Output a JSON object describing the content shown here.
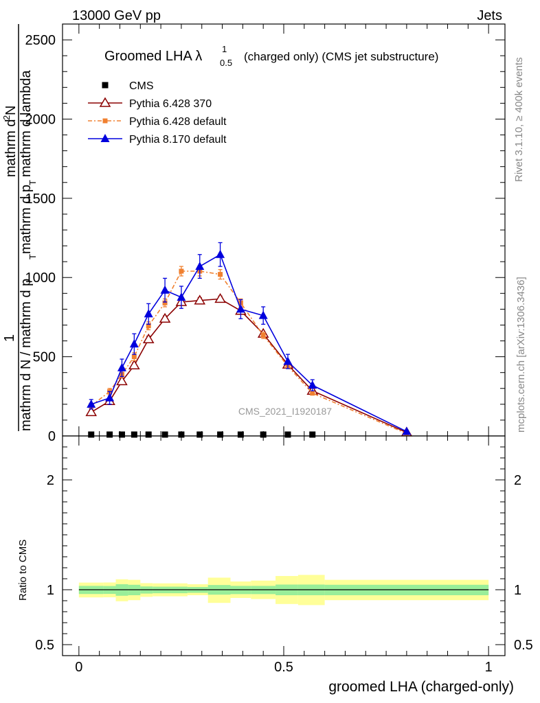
{
  "header": {
    "left": "13000 GeV pp",
    "right": "Jets"
  },
  "title": {
    "prefix": "Groomed LHA ",
    "lambda": "λ",
    "sup": "1",
    "sub": "0.5",
    "suffix": "(charged only) (CMS jet substructure)"
  },
  "watermark": "CMS_2021_I1920187",
  "side_labels": {
    "rivet": "Rivet 3.1.10, ≥ 400k events",
    "mcplots": "mcplots.cern.ch [arXiv:1306.3436]"
  },
  "ylabel_main": {
    "one": "1",
    "num": "mathrm d N",
    "num_top": "mathrm d",
    "num_sup": "2",
    "num_right": "N",
    "den": "mathrm d N / mathrm d p",
    "den_sub": "T",
    "den_top": "mathrm d p",
    "den_top_sub": "T",
    "den_top2": "mathrm d lambda"
  },
  "chart_data": {
    "type": "line",
    "xlabel": "groomed LHA (charged-only)",
    "xlim": [
      -0.04,
      1.04
    ],
    "ylim": [
      0,
      2600
    ],
    "y_ticks": [
      0,
      500,
      1000,
      1500,
      2000,
      2500
    ],
    "y_tick_labels": [
      "0",
      "500",
      "1000",
      "1500",
      "2000",
      "2500"
    ],
    "x_ticks": [
      0,
      0.5,
      1
    ],
    "x_tick_labels": [
      "0",
      "0.5",
      "1"
    ],
    "ratio": {
      "ylabel": "Ratio to CMS",
      "ylim": [
        0.4,
        2.4
      ],
      "ticks": [
        0.5,
        1,
        2
      ],
      "tick_labels": [
        "0.5",
        "1",
        "2"
      ],
      "bands": [
        {
          "x0": 0.0,
          "x1": 0.06,
          "inner": [
            0.961,
            1.035
          ],
          "outer": [
            0.93,
            1.065
          ]
        },
        {
          "x0": 0.06,
          "x1": 0.09,
          "inner": [
            0.962,
            1.034
          ],
          "outer": [
            0.931,
            1.066
          ]
        },
        {
          "x0": 0.09,
          "x1": 0.12,
          "inner": [
            0.945,
            1.05
          ],
          "outer": [
            0.895,
            1.095
          ]
        },
        {
          "x0": 0.12,
          "x1": 0.15,
          "inner": [
            0.95,
            1.045
          ],
          "outer": [
            0.905,
            1.09
          ]
        },
        {
          "x0": 0.15,
          "x1": 0.18,
          "inner": [
            0.965,
            1.03
          ],
          "outer": [
            0.935,
            1.06
          ]
        },
        {
          "x0": 0.18,
          "x1": 0.225,
          "inner": [
            0.968,
            1.028
          ],
          "outer": [
            0.94,
            1.058
          ]
        },
        {
          "x0": 0.225,
          "x1": 0.265,
          "inner": [
            0.968,
            1.028
          ],
          "outer": [
            0.94,
            1.058
          ]
        },
        {
          "x0": 0.265,
          "x1": 0.315,
          "inner": [
            0.972,
            1.025
          ],
          "outer": [
            0.95,
            1.05
          ]
        },
        {
          "x0": 0.315,
          "x1": 0.37,
          "inner": [
            0.955,
            1.043
          ],
          "outer": [
            0.88,
            1.11
          ]
        },
        {
          "x0": 0.37,
          "x1": 0.42,
          "inner": [
            0.96,
            1.035
          ],
          "outer": [
            0.925,
            1.075
          ]
        },
        {
          "x0": 0.42,
          "x1": 0.48,
          "inner": [
            0.96,
            1.035
          ],
          "outer": [
            0.915,
            1.083
          ]
        },
        {
          "x0": 0.48,
          "x1": 0.535,
          "inner": [
            0.95,
            1.047
          ],
          "outer": [
            0.87,
            1.125
          ]
        },
        {
          "x0": 0.535,
          "x1": 0.6,
          "inner": [
            0.95,
            1.047
          ],
          "outer": [
            0.86,
            1.135
          ]
        },
        {
          "x0": 0.6,
          "x1": 1.0,
          "inner": [
            0.95,
            1.045
          ],
          "outer": [
            0.905,
            1.09
          ]
        }
      ]
    },
    "legend": [
      "CMS",
      "Pythia 6.428 370",
      "Pythia 6.428 default",
      "Pythia 8.170 default"
    ],
    "series": [
      {
        "name": "CMS",
        "color": "#000000",
        "marker": "square",
        "x": [
          0.03,
          0.075,
          0.105,
          0.135,
          0.17,
          0.21,
          0.25,
          0.295,
          0.345,
          0.395,
          0.45,
          0.51,
          0.57
        ],
        "y": [
          0,
          0,
          0,
          0,
          0,
          0,
          0,
          0,
          0,
          0,
          0,
          0,
          0
        ],
        "err": []
      },
      {
        "name": "Pythia 6.428 370",
        "color": "#8b0000",
        "marker": "triangle-open",
        "dash": "",
        "x": [
          0.03,
          0.075,
          0.105,
          0.135,
          0.17,
          0.21,
          0.25,
          0.295,
          0.345,
          0.395,
          0.45,
          0.51,
          0.57,
          0.8
        ],
        "y": [
          150,
          220,
          345,
          445,
          610,
          740,
          845,
          855,
          865,
          790,
          645,
          450,
          285,
          22
        ],
        "err": [
          12,
          15,
          18,
          18,
          20,
          18,
          20,
          18,
          18,
          18,
          15,
          12,
          10,
          5
        ]
      },
      {
        "name": "Pythia 6.428 default",
        "color": "#f08030",
        "marker": "square-small",
        "dash": "6 3 2 3",
        "x": [
          0.03,
          0.075,
          0.105,
          0.135,
          0.17,
          0.21,
          0.25,
          0.295,
          0.345,
          0.395,
          0.45,
          0.51,
          0.57,
          0.8
        ],
        "y": [
          190,
          280,
          390,
          500,
          695,
          840,
          1040,
          1040,
          1020,
          840,
          635,
          440,
          270,
          15
        ],
        "err": [
          15,
          20,
          22,
          25,
          25,
          25,
          30,
          30,
          30,
          25,
          20,
          15,
          12,
          5
        ]
      },
      {
        "name": "Pythia 8.170 default",
        "color": "#0000dd",
        "marker": "triangle-filled",
        "dash": "",
        "x": [
          0.03,
          0.075,
          0.105,
          0.135,
          0.17,
          0.21,
          0.25,
          0.295,
          0.345,
          0.395,
          0.45,
          0.51,
          0.57,
          0.8
        ],
        "y": [
          200,
          240,
          430,
          580,
          770,
          920,
          875,
          1070,
          1145,
          800,
          760,
          470,
          320,
          28
        ],
        "err": [
          30,
          40,
          55,
          65,
          65,
          75,
          70,
          75,
          75,
          60,
          55,
          45,
          35,
          8
        ]
      }
    ]
  }
}
